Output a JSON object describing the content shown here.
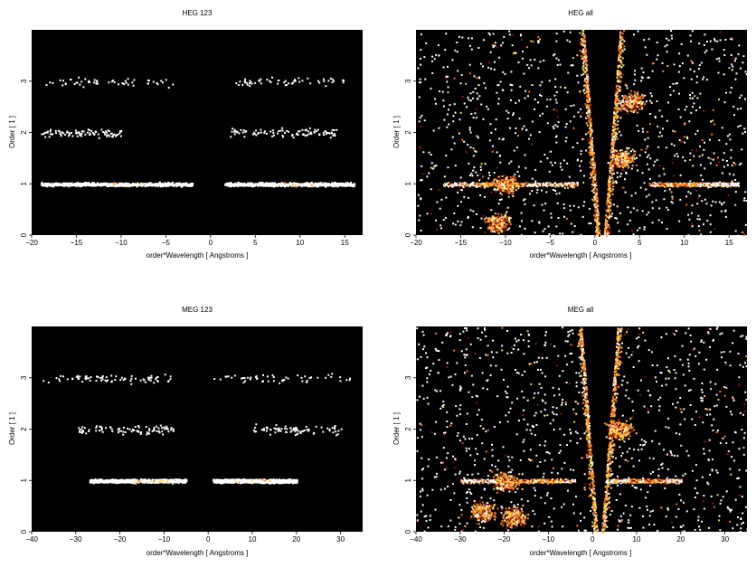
{
  "chart_data": [
    {
      "type": "heatmap",
      "title": "HEG 123",
      "xlabel": "order*Wavelength [ Angstroms ]",
      "ylabel": "Order [ 1 ]",
      "xlim": [
        -20,
        17
      ],
      "ylim": [
        0,
        4
      ],
      "xticks": [
        -20,
        -15,
        -10,
        -5,
        0,
        5,
        10,
        15
      ],
      "yticks": [
        0,
        1,
        2,
        3
      ],
      "background": "#000000",
      "point_color": "#ffffff",
      "bands": [
        {
          "order": 1,
          "x_ranges": [
            [
              -19,
              -2
            ],
            [
              1.5,
              16
            ]
          ],
          "density": 0.85,
          "hot": [
            [
              -12,
              -7
            ],
            [
              7,
              12
            ]
          ]
        },
        {
          "order": 2,
          "x_ranges": [
            [
              -19,
              -10
            ],
            [
              2,
              14
            ]
          ],
          "density": 0.1,
          "hot": []
        },
        {
          "order": 3,
          "x_ranges": [
            [
              -19,
              -4
            ],
            [
              2.5,
              15
            ]
          ],
          "density": 0.06,
          "hot": []
        }
      ],
      "wedge": false,
      "background_density": 0
    },
    {
      "type": "heatmap",
      "title": "HEG all",
      "xlabel": "order*Wavelength [ Angstroms ]",
      "ylabel": "Order [ 1 ]",
      "xlim": [
        -20,
        17
      ],
      "ylim": [
        0,
        4
      ],
      "xticks": [
        -20,
        -15,
        -10,
        -5,
        0,
        5,
        10,
        15
      ],
      "yticks": [
        0,
        1,
        2,
        3
      ],
      "background": "#000000",
      "point_color": "#ffffff",
      "bands": [
        {
          "order": 1,
          "x_ranges": [
            [
              -17,
              -2
            ],
            [
              6,
              16
            ]
          ],
          "density": 0.7,
          "hot": [
            [
              -13,
              -8
            ],
            [
              7,
              12
            ]
          ]
        }
      ],
      "wedge": true,
      "background_density": 0.32,
      "clumps": [
        [
          -11,
          0.25
        ],
        [
          -10,
          1.0
        ],
        [
          3,
          1.5
        ],
        [
          4,
          2.6
        ]
      ]
    },
    {
      "type": "heatmap",
      "title": "MEG 123",
      "xlabel": "order*Wavelength [ Angstroms ]",
      "ylabel": "Order [ 1 ]",
      "xlim": [
        -40,
        35
      ],
      "ylim": [
        0,
        4
      ],
      "xticks": [
        -40,
        -30,
        -20,
        -10,
        0,
        10,
        20,
        30
      ],
      "yticks": [
        0,
        1,
        2,
        3
      ],
      "background": "#000000",
      "point_color": "#ffffff",
      "bands": [
        {
          "order": 1,
          "x_ranges": [
            [
              -27,
              -5
            ],
            [
              1,
              20
            ]
          ],
          "density": 0.85,
          "hot": [
            [
              -18,
              -7
            ],
            [
              6,
              15
            ]
          ]
        },
        {
          "order": 2,
          "x_ranges": [
            [
              -30,
              -8
            ],
            [
              10,
              30
            ]
          ],
          "density": 0.09,
          "hot": []
        },
        {
          "order": 3,
          "x_ranges": [
            [
              -38,
              -8
            ],
            [
              0,
              32
            ]
          ],
          "density": 0.07,
          "hot": []
        }
      ],
      "wedge": false,
      "background_density": 0
    },
    {
      "type": "heatmap",
      "title": "MEG all",
      "xlabel": "order*Wavelength [ Angstroms ]",
      "ylabel": "Order [ 1 ]",
      "xlim": [
        -40,
        35
      ],
      "ylim": [
        0,
        4
      ],
      "xticks": [
        -40,
        -30,
        -20,
        -10,
        0,
        10,
        20,
        30
      ],
      "yticks": [
        0,
        1,
        2,
        3
      ],
      "background": "#000000",
      "point_color": "#ffffff",
      "bands": [
        {
          "order": 1,
          "x_ranges": [
            [
              -30,
              -4
            ],
            [
              4,
              20
            ]
          ],
          "density": 0.7,
          "hot": [
            [
              -18,
              -7
            ],
            [
              8,
              17
            ]
          ]
        }
      ],
      "wedge": true,
      "background_density": 0.32,
      "clumps": [
        [
          -25,
          0.4
        ],
        [
          -18,
          0.3
        ],
        [
          -20,
          1.0
        ],
        [
          6,
          2.0
        ]
      ]
    }
  ],
  "colors": {
    "background": "#000000",
    "heat_low": "#8b1a00",
    "heat_mid": "#ff7a1a",
    "heat_high": "#ffd24a",
    "heat_max": "#ffffff"
  }
}
